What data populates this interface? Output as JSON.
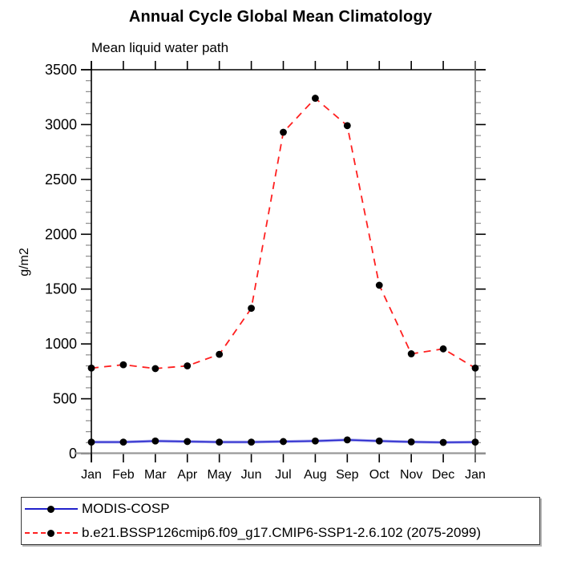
{
  "chart_data": {
    "type": "line",
    "title": "Annual Cycle Global Mean Climatology",
    "subtitle": "Mean liquid water path",
    "ylabel": "g/m2",
    "xlabel": "",
    "categories": [
      "Jan",
      "Feb",
      "Mar",
      "Apr",
      "May",
      "Jun",
      "Jul",
      "Aug",
      "Sep",
      "Oct",
      "Nov",
      "Dec",
      "Jan"
    ],
    "ylim": [
      0,
      3500
    ],
    "yticks": [
      0,
      500,
      1000,
      1500,
      2000,
      2500,
      3000,
      3500
    ],
    "yminor_step": 100,
    "grid": false,
    "legend_position": "bottom-left-box",
    "marker_color": "#000000",
    "series": [
      {
        "name": "MODIS-COSP",
        "color": "#2222cc",
        "halo_color": "#a8a8ec",
        "style": "solid",
        "marker": "black-dot",
        "values": [
          105,
          105,
          115,
          110,
          105,
          105,
          110,
          115,
          125,
          115,
          107,
          102,
          105
        ]
      },
      {
        "name": "b.e21.BSSP126cmip6.f09_g17.CMIP6-SSP1-2.6.102 (2075-2099)",
        "color": "#ff2020",
        "style": "dashed",
        "marker": "black-dot",
        "values": [
          780,
          810,
          775,
          800,
          905,
          1325,
          2930,
          3240,
          2990,
          1535,
          910,
          955,
          780
        ]
      }
    ]
  }
}
